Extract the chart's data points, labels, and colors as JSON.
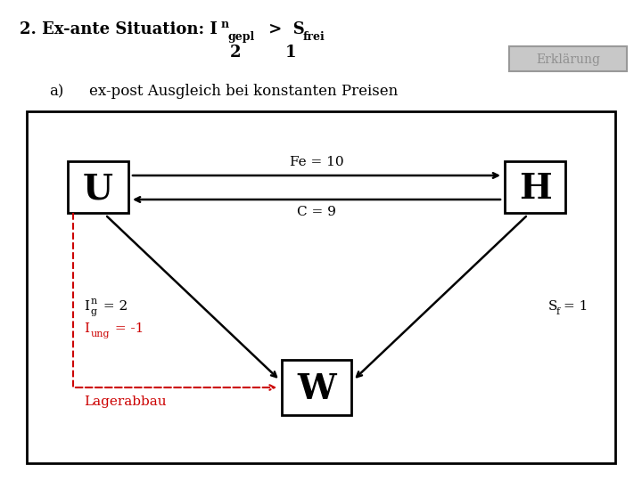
{
  "title_main": "2. Ex-ante Situation: I",
  "title_sup": "n",
  "title_sub_gepl": "gepl",
  "title_gt_s": " >  S",
  "title_sub_frei": "frei",
  "num1": "2",
  "num2": "1",
  "subtitle_a": "a)",
  "subtitle_text": "ex-post Ausgleich bei konstanten Preisen",
  "erklarung_text": "Erklärung",
  "box_U": "U",
  "box_H": "H",
  "box_W": "W",
  "fe_label": "Fe = 10",
  "c_label": "C = 9",
  "ing_label": "I",
  "ing_sup": "n",
  "ing_sub": "g",
  "ing_val": " = 2",
  "iung_label": "I",
  "iung_sub": "ung",
  "iung_val": " = -1",
  "lager_label": "Lagerabbau",
  "sf_label": "S",
  "sf_sub": "f",
  "sf_val": "= 1",
  "bg_color": "#ffffff",
  "black": "#000000",
  "red": "#cc0000",
  "gray_bg": "#c8c8c8",
  "gray_text": "#909090",
  "gray_border": "#999999"
}
